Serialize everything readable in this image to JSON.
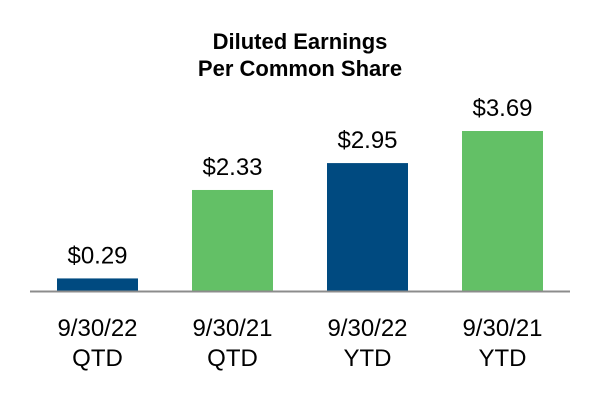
{
  "chart_data": {
    "type": "bar",
    "title_lines": [
      "Diluted Earnings",
      "Per Common Share"
    ],
    "categories": [
      [
        "9/30/22",
        "QTD"
      ],
      [
        "9/30/21",
        "QTD"
      ],
      [
        "9/30/22",
        "YTD"
      ],
      [
        "9/30/21",
        "YTD"
      ]
    ],
    "values": [
      0.29,
      2.33,
      2.95,
      3.69
    ],
    "data_labels": [
      "$0.29",
      "$2.33",
      "$2.95",
      "$3.69"
    ],
    "bar_colors": [
      "#004a80",
      "#63c066",
      "#004a80",
      "#63c066"
    ],
    "axis_color": "#8c8c8c",
    "grid": false,
    "legend": "none",
    "ylim": [
      0,
      3.69
    ]
  }
}
